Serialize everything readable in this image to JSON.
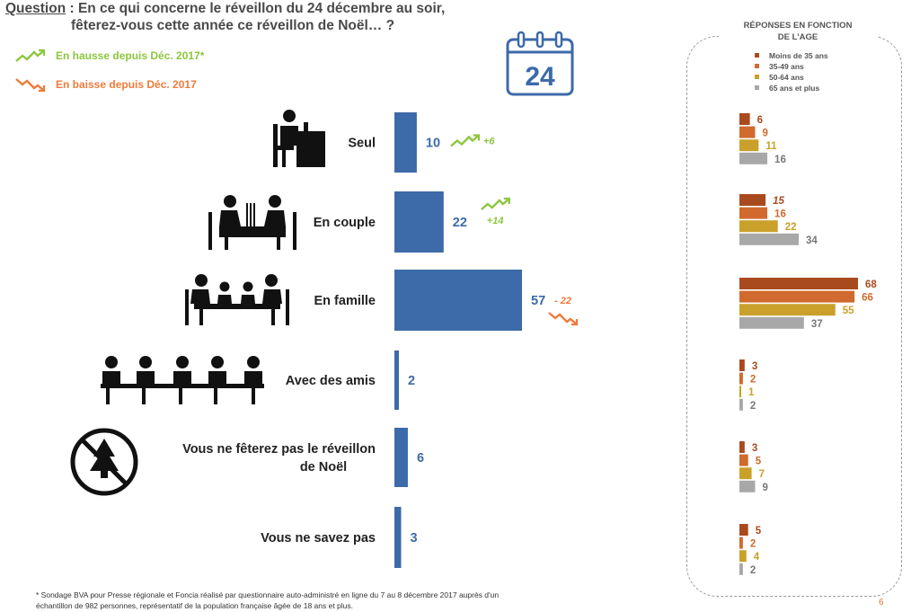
{
  "question": {
    "label": "Question",
    "line1": " : En ce qui concerne le réveillon du 24 décembre au soir,",
    "line2": "fêterez-vous cette année ce réveillon de Noël… ?"
  },
  "trend_legend": {
    "up": "En hausse depuis Déc. 2017*",
    "down": "En baisse depuis Déc. 2017",
    "up_color": "#8dc63f",
    "down_color": "#f07a3a"
  },
  "calendar": {
    "day": "24"
  },
  "age_panel": {
    "title_line1": "RÉPONSES EN FONCTION",
    "title_line2": "DE L'AGE",
    "groups": [
      "Moins de 35 ans",
      "35-49 ans",
      "50-64 ans",
      "65 ans et plus"
    ],
    "colors": [
      "#a94a1e",
      "#d06a2e",
      "#c9a12a",
      "#a8a8a8"
    ]
  },
  "chart_data": [
    {
      "type": "bar",
      "orientation": "horizontal",
      "categories": [
        "Seul",
        "En couple",
        "En famille",
        "Avec des amis",
        "Vous ne fêterez pas le réveillon de Noël",
        "Vous ne savez pas"
      ],
      "values": [
        10,
        22,
        57,
        2,
        6,
        3
      ],
      "value_labels": [
        "10",
        "22",
        "57",
        "2",
        "6",
        "3"
      ],
      "trends": [
        {
          "direction": "up",
          "label": "+6"
        },
        {
          "direction": "up",
          "label": "+14"
        },
        {
          "direction": "down",
          "label": "- 22"
        },
        null,
        null,
        null
      ],
      "color": "#3d6aa8",
      "xlim": [
        0,
        57
      ]
    },
    {
      "type": "bar",
      "orientation": "horizontal",
      "categories": [
        "Seul",
        "En couple",
        "En famille",
        "Avec des amis",
        "Vous ne fêterez pas le réveillon de Noël",
        "Vous ne savez pas"
      ],
      "series": [
        {
          "name": "Moins de 35 ans",
          "values": [
            6,
            15,
            68,
            3,
            3,
            5
          ],
          "labels": [
            "6",
            "15",
            "68",
            "3",
            "3",
            "5"
          ]
        },
        {
          "name": "35-49 ans",
          "values": [
            9,
            16,
            66,
            2,
            5,
            2
          ],
          "labels": [
            "9",
            "16",
            "66",
            "2",
            "5",
            "2"
          ]
        },
        {
          "name": "50-64 ans",
          "values": [
            11,
            22,
            55,
            1,
            7,
            4
          ],
          "labels": [
            "11",
            "22",
            "55",
            "1",
            "7",
            "4"
          ]
        },
        {
          "name": "65 ans et plus",
          "values": [
            16,
            34,
            37,
            2,
            9,
            2
          ],
          "labels": [
            "16",
            "34",
            "37",
            "2",
            "9",
            "2"
          ]
        }
      ],
      "xlim": [
        0,
        68
      ]
    }
  ],
  "footnote": "* Sondage BVA pour Presse régionale et Foncia réalisé par questionnaire auto-administré en ligne du 7 au 8 décembre 2017 auprès d'un échantillon de 982 personnes, représentatif de la population française âgée de 18 ans et plus.",
  "page_number": "6"
}
